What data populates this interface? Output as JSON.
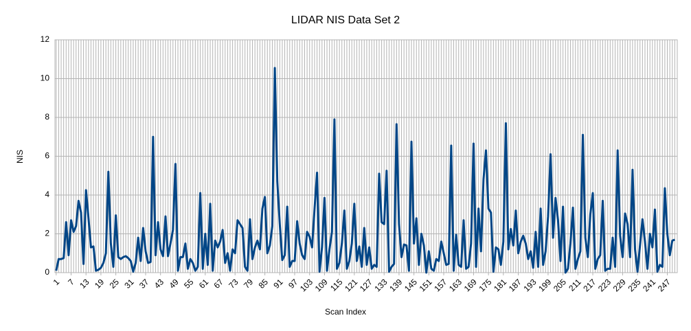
{
  "chart_data": {
    "type": "line",
    "title": "LIDAR NIS Data Set 2",
    "xlabel": "Scan Index",
    "ylabel": "NIS",
    "x": [
      1,
      2,
      3,
      4,
      5,
      6,
      7,
      8,
      9,
      10,
      11,
      12,
      13,
      14,
      15,
      16,
      17,
      18,
      19,
      20,
      21,
      22,
      23,
      24,
      25,
      26,
      27,
      28,
      29,
      30,
      31,
      32,
      33,
      34,
      35,
      36,
      37,
      38,
      39,
      40,
      41,
      42,
      43,
      44,
      45,
      46,
      47,
      48,
      49,
      50,
      51,
      52,
      53,
      54,
      55,
      56,
      57,
      58,
      59,
      60,
      61,
      62,
      63,
      64,
      65,
      66,
      67,
      68,
      69,
      70,
      71,
      72,
      73,
      74,
      75,
      76,
      77,
      78,
      79,
      80,
      81,
      82,
      83,
      84,
      85,
      86,
      87,
      88,
      89,
      90,
      91,
      92,
      93,
      94,
      95,
      96,
      97,
      98,
      99,
      100,
      101,
      102,
      103,
      104,
      105,
      106,
      107,
      108,
      109,
      110,
      111,
      112,
      113,
      114,
      115,
      116,
      117,
      118,
      119,
      120,
      121,
      122,
      123,
      124,
      125,
      126,
      127,
      128,
      129,
      130,
      131,
      132,
      133,
      134,
      135,
      136,
      137,
      138,
      139,
      140,
      141,
      142,
      143,
      144,
      145,
      146,
      147,
      148,
      149,
      150,
      151,
      152,
      153,
      154,
      155,
      156,
      157,
      158,
      159,
      160,
      161,
      162,
      163,
      164,
      165,
      166,
      167,
      168,
      169,
      170,
      171,
      172,
      173,
      174,
      175,
      176,
      177,
      178,
      179,
      180,
      181,
      182,
      183,
      184,
      185,
      186,
      187,
      188,
      189,
      190,
      191,
      192,
      193,
      194,
      195,
      196,
      197,
      198,
      199,
      200,
      201,
      202,
      203,
      204,
      205,
      206,
      207,
      208,
      209,
      210,
      211,
      212,
      213,
      214,
      215,
      216,
      217,
      218,
      219,
      220,
      221,
      222,
      223,
      224,
      225,
      226,
      227,
      228,
      229,
      230,
      231,
      232,
      233,
      234,
      235,
      236,
      237,
      238,
      239,
      240,
      241,
      242,
      243,
      244,
      245,
      246,
      247,
      248,
      249,
      250
    ],
    "series": [
      {
        "name": "NIS",
        "color": "#004586",
        "values": [
          0.1,
          0.7,
          0.7,
          0.75,
          2.6,
          0.9,
          2.7,
          2.1,
          2.4,
          3.7,
          3.1,
          0.45,
          4.25,
          2.8,
          1.3,
          1.35,
          0.1,
          0.15,
          0.25,
          0.5,
          1.0,
          5.2,
          1.5,
          0.3,
          2.95,
          0.8,
          0.7,
          0.8,
          0.85,
          0.75,
          0.6,
          0.05,
          0.5,
          1.8,
          0.6,
          2.3,
          1.1,
          0.5,
          0.55,
          7.0,
          0.9,
          2.6,
          1.2,
          0.85,
          2.9,
          0.85,
          1.5,
          2.2,
          5.6,
          0.1,
          0.8,
          0.8,
          1.5,
          0.2,
          0.7,
          0.5,
          0.1,
          0.3,
          4.1,
          0.2,
          2.0,
          0.4,
          3.55,
          0.1,
          1.65,
          1.3,
          1.6,
          2.2,
          0.5,
          1.0,
          0.1,
          1.2,
          1.0,
          2.7,
          2.5,
          2.3,
          0.3,
          0.1,
          2.75,
          0.7,
          1.3,
          1.65,
          1.2,
          3.3,
          3.9,
          1.0,
          1.4,
          2.4,
          10.55,
          4.7,
          2.5,
          0.65,
          0.9,
          3.4,
          0.3,
          0.6,
          0.6,
          2.65,
          1.5,
          0.9,
          0.7,
          2.1,
          1.85,
          1.3,
          3.3,
          5.15,
          0.05,
          1.3,
          3.85,
          0.1,
          1.2,
          2.1,
          7.9,
          0.2,
          0.5,
          1.5,
          3.2,
          0.2,
          0.6,
          1.5,
          3.55,
          0.6,
          1.35,
          0.3,
          2.3,
          0.4,
          1.3,
          0.2,
          0.4,
          0.3,
          5.1,
          2.6,
          2.5,
          5.25,
          0.05,
          0.3,
          0.45,
          7.65,
          2.5,
          0.8,
          1.45,
          1.4,
          0.1,
          6.75,
          1.5,
          2.8,
          0.4,
          2.0,
          1.4,
          0.0,
          1.1,
          0.2,
          0.1,
          0.7,
          0.6,
          1.6,
          1.0,
          0.4,
          0.45,
          6.55,
          0.1,
          1.95,
          0.4,
          0.3,
          2.7,
          0.2,
          0.3,
          1.5,
          6.65,
          0.3,
          3.3,
          1.1,
          4.8,
          6.3,
          3.3,
          3.1,
          0.05,
          1.3,
          1.2,
          0.4,
          1.6,
          7.7,
          1.2,
          2.25,
          1.4,
          3.2,
          1.0,
          1.6,
          1.9,
          1.5,
          0.7,
          1.1,
          0.25,
          2.1,
          0.3,
          3.3,
          0.4,
          1.1,
          2.9,
          6.1,
          1.8,
          3.85,
          2.7,
          0.6,
          3.4,
          0.0,
          0.2,
          1.5,
          3.35,
          0.2,
          0.7,
          1.1,
          7.1,
          1.8,
          0.8,
          3.0,
          4.1,
          0.2,
          0.7,
          0.9,
          3.7,
          0.1,
          0.2,
          0.2,
          1.8,
          0.3,
          6.3,
          1.9,
          0.8,
          3.05,
          2.5,
          0.8,
          5.3,
          1.2,
          0.05,
          1.4,
          2.75,
          1.6,
          0.2,
          2.0,
          1.3,
          3.25,
          0.05,
          0.4,
          0.3,
          4.35,
          2.0,
          0.9,
          1.65,
          1.7
        ]
      }
    ],
    "xlim": [
      0.5,
      251
    ],
    "xticks": [
      1,
      7,
      13,
      19,
      25,
      31,
      37,
      43,
      49,
      55,
      61,
      67,
      73,
      79,
      85,
      91,
      97,
      103,
      109,
      115,
      121,
      127,
      133,
      139,
      145,
      151,
      157,
      163,
      169,
      175,
      181,
      187,
      193,
      199,
      205,
      211,
      217,
      223,
      229,
      235,
      241,
      247
    ],
    "ylim": [
      0,
      12
    ],
    "yticks": [
      0,
      2,
      4,
      6,
      8,
      10,
      12
    ],
    "grid": true
  }
}
